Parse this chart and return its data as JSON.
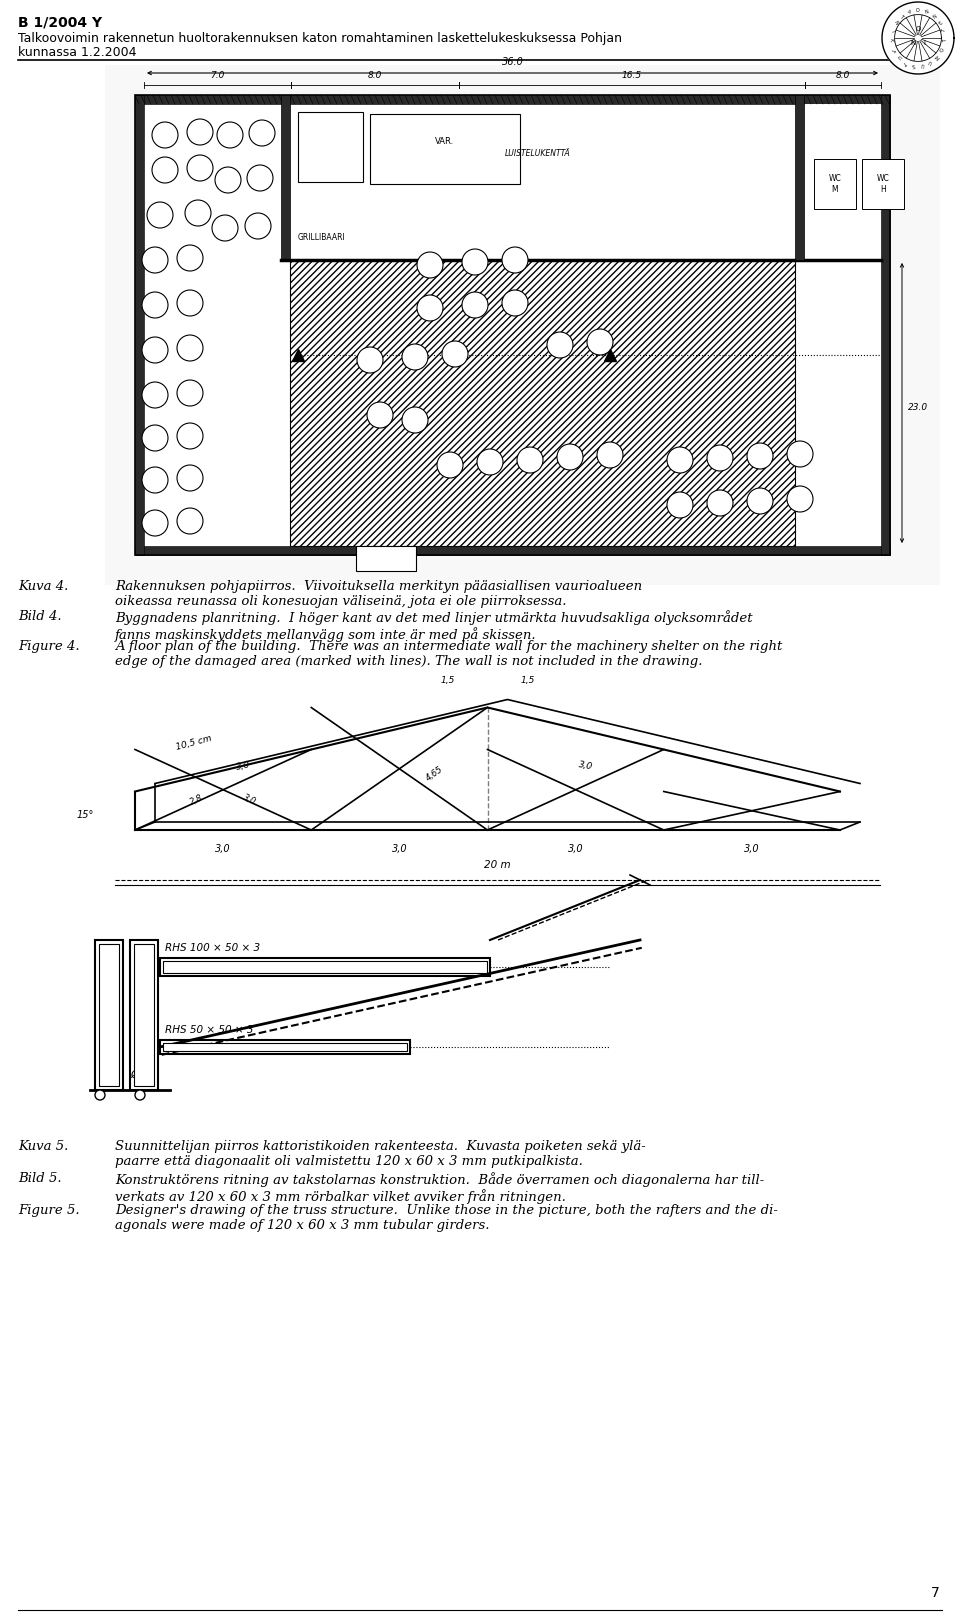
{
  "page_width": 9.6,
  "page_height": 16.2,
  "bg_color": "#ffffff",
  "header_line1": "B 1/2004 Y",
  "header_line2": "Talkoovoimin rakennetun huoltorakennuksen katon romahtaminen laskettelukeskuksessa Pohjan",
  "header_line3": "kunnassa 1.2.2004",
  "caption4_kuva": "Kuva 4.",
  "caption4_kuva_text": "Rakennuksen pohjapiirros.  Viivoituksella merkityn pääasiallisen vaurioalueen\noikeassa reunassa oli konesuojan väliseinä, jota ei ole piirroksessa.",
  "caption4_bild": "Bild 4.",
  "caption4_bild_text": "Byggnadens planritning.  I höger kant av det med linjer utmärkta huvudsakliga olycksområdet\nfanns maskinskyddets mellanvägg som inte är med på skissen.",
  "caption4_figure": "Figure 4.",
  "caption4_figure_text": "A floor plan of the building.  There was an intermediate wall for the machinery shelter on the right\nedge of the damaged area (marked with lines). The wall is not included in the drawing.",
  "caption5_kuva": "Kuva 5.",
  "caption5_kuva_text": "Suunnittelijan piirros kattoristikoiden rakenteesta.  Kuvasta poiketen sekä ylä-\npaarre että diagonaalit oli valmistettu 120 x 60 x 3 mm putkipalkista.",
  "caption5_bild": "Bild 5.",
  "caption5_bild_text": "Konstruktörens ritning av takstolarnas konstruktion.  Både överramen och diagonalerna har till-\nverkats av 120 x 60 x 3 mm rörbalkar vilket avviker från ritningen.",
  "caption5_figure": "Figure 5.",
  "caption5_figure_text": "Designer's drawing of the truss structure.  Unlike those in the picture, both the rafters and the di-\nagonals were made of 120 x 60 x 3 mm tubular girders.",
  "page_number": "7"
}
